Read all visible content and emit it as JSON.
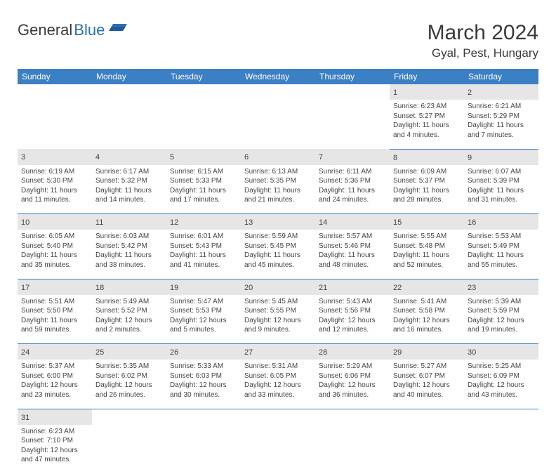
{
  "logo": {
    "text1": "General",
    "text2": "Blue"
  },
  "title": "March 2024",
  "location": "Gyal, Pest, Hungary",
  "headers": [
    "Sunday",
    "Monday",
    "Tuesday",
    "Wednesday",
    "Thursday",
    "Friday",
    "Saturday"
  ],
  "colors": {
    "header_bg": "#3b7fc4",
    "header_text": "#ffffff",
    "daynum_bg": "#e6e6e6",
    "border": "#3b7fc4",
    "text": "#444444",
    "logo_blue": "#2b6fb0"
  },
  "weeks": [
    [
      null,
      null,
      null,
      null,
      null,
      {
        "n": "1",
        "sr": "Sunrise: 6:23 AM",
        "ss": "Sunset: 5:27 PM",
        "d1": "Daylight: 11 hours",
        "d2": "and 4 minutes."
      },
      {
        "n": "2",
        "sr": "Sunrise: 6:21 AM",
        "ss": "Sunset: 5:29 PM",
        "d1": "Daylight: 11 hours",
        "d2": "and 7 minutes."
      }
    ],
    [
      {
        "n": "3",
        "sr": "Sunrise: 6:19 AM",
        "ss": "Sunset: 5:30 PM",
        "d1": "Daylight: 11 hours",
        "d2": "and 11 minutes."
      },
      {
        "n": "4",
        "sr": "Sunrise: 6:17 AM",
        "ss": "Sunset: 5:32 PM",
        "d1": "Daylight: 11 hours",
        "d2": "and 14 minutes."
      },
      {
        "n": "5",
        "sr": "Sunrise: 6:15 AM",
        "ss": "Sunset: 5:33 PM",
        "d1": "Daylight: 11 hours",
        "d2": "and 17 minutes."
      },
      {
        "n": "6",
        "sr": "Sunrise: 6:13 AM",
        "ss": "Sunset: 5:35 PM",
        "d1": "Daylight: 11 hours",
        "d2": "and 21 minutes."
      },
      {
        "n": "7",
        "sr": "Sunrise: 6:11 AM",
        "ss": "Sunset: 5:36 PM",
        "d1": "Daylight: 11 hours",
        "d2": "and 24 minutes."
      },
      {
        "n": "8",
        "sr": "Sunrise: 6:09 AM",
        "ss": "Sunset: 5:37 PM",
        "d1": "Daylight: 11 hours",
        "d2": "and 28 minutes."
      },
      {
        "n": "9",
        "sr": "Sunrise: 6:07 AM",
        "ss": "Sunset: 5:39 PM",
        "d1": "Daylight: 11 hours",
        "d2": "and 31 minutes."
      }
    ],
    [
      {
        "n": "10",
        "sr": "Sunrise: 6:05 AM",
        "ss": "Sunset: 5:40 PM",
        "d1": "Daylight: 11 hours",
        "d2": "and 35 minutes."
      },
      {
        "n": "11",
        "sr": "Sunrise: 6:03 AM",
        "ss": "Sunset: 5:42 PM",
        "d1": "Daylight: 11 hours",
        "d2": "and 38 minutes."
      },
      {
        "n": "12",
        "sr": "Sunrise: 6:01 AM",
        "ss": "Sunset: 5:43 PM",
        "d1": "Daylight: 11 hours",
        "d2": "and 41 minutes."
      },
      {
        "n": "13",
        "sr": "Sunrise: 5:59 AM",
        "ss": "Sunset: 5:45 PM",
        "d1": "Daylight: 11 hours",
        "d2": "and 45 minutes."
      },
      {
        "n": "14",
        "sr": "Sunrise: 5:57 AM",
        "ss": "Sunset: 5:46 PM",
        "d1": "Daylight: 11 hours",
        "d2": "and 48 minutes."
      },
      {
        "n": "15",
        "sr": "Sunrise: 5:55 AM",
        "ss": "Sunset: 5:48 PM",
        "d1": "Daylight: 11 hours",
        "d2": "and 52 minutes."
      },
      {
        "n": "16",
        "sr": "Sunrise: 5:53 AM",
        "ss": "Sunset: 5:49 PM",
        "d1": "Daylight: 11 hours",
        "d2": "and 55 minutes."
      }
    ],
    [
      {
        "n": "17",
        "sr": "Sunrise: 5:51 AM",
        "ss": "Sunset: 5:50 PM",
        "d1": "Daylight: 11 hours",
        "d2": "and 59 minutes."
      },
      {
        "n": "18",
        "sr": "Sunrise: 5:49 AM",
        "ss": "Sunset: 5:52 PM",
        "d1": "Daylight: 12 hours",
        "d2": "and 2 minutes."
      },
      {
        "n": "19",
        "sr": "Sunrise: 5:47 AM",
        "ss": "Sunset: 5:53 PM",
        "d1": "Daylight: 12 hours",
        "d2": "and 5 minutes."
      },
      {
        "n": "20",
        "sr": "Sunrise: 5:45 AM",
        "ss": "Sunset: 5:55 PM",
        "d1": "Daylight: 12 hours",
        "d2": "and 9 minutes."
      },
      {
        "n": "21",
        "sr": "Sunrise: 5:43 AM",
        "ss": "Sunset: 5:56 PM",
        "d1": "Daylight: 12 hours",
        "d2": "and 12 minutes."
      },
      {
        "n": "22",
        "sr": "Sunrise: 5:41 AM",
        "ss": "Sunset: 5:58 PM",
        "d1": "Daylight: 12 hours",
        "d2": "and 16 minutes."
      },
      {
        "n": "23",
        "sr": "Sunrise: 5:39 AM",
        "ss": "Sunset: 5:59 PM",
        "d1": "Daylight: 12 hours",
        "d2": "and 19 minutes."
      }
    ],
    [
      {
        "n": "24",
        "sr": "Sunrise: 5:37 AM",
        "ss": "Sunset: 6:00 PM",
        "d1": "Daylight: 12 hours",
        "d2": "and 23 minutes."
      },
      {
        "n": "25",
        "sr": "Sunrise: 5:35 AM",
        "ss": "Sunset: 6:02 PM",
        "d1": "Daylight: 12 hours",
        "d2": "and 26 minutes."
      },
      {
        "n": "26",
        "sr": "Sunrise: 5:33 AM",
        "ss": "Sunset: 6:03 PM",
        "d1": "Daylight: 12 hours",
        "d2": "and 30 minutes."
      },
      {
        "n": "27",
        "sr": "Sunrise: 5:31 AM",
        "ss": "Sunset: 6:05 PM",
        "d1": "Daylight: 12 hours",
        "d2": "and 33 minutes."
      },
      {
        "n": "28",
        "sr": "Sunrise: 5:29 AM",
        "ss": "Sunset: 6:06 PM",
        "d1": "Daylight: 12 hours",
        "d2": "and 36 minutes."
      },
      {
        "n": "29",
        "sr": "Sunrise: 5:27 AM",
        "ss": "Sunset: 6:07 PM",
        "d1": "Daylight: 12 hours",
        "d2": "and 40 minutes."
      },
      {
        "n": "30",
        "sr": "Sunrise: 5:25 AM",
        "ss": "Sunset: 6:09 PM",
        "d1": "Daylight: 12 hours",
        "d2": "and 43 minutes."
      }
    ],
    [
      {
        "n": "31",
        "sr": "Sunrise: 6:23 AM",
        "ss": "Sunset: 7:10 PM",
        "d1": "Daylight: 12 hours",
        "d2": "and 47 minutes."
      },
      null,
      null,
      null,
      null,
      null,
      null
    ]
  ]
}
